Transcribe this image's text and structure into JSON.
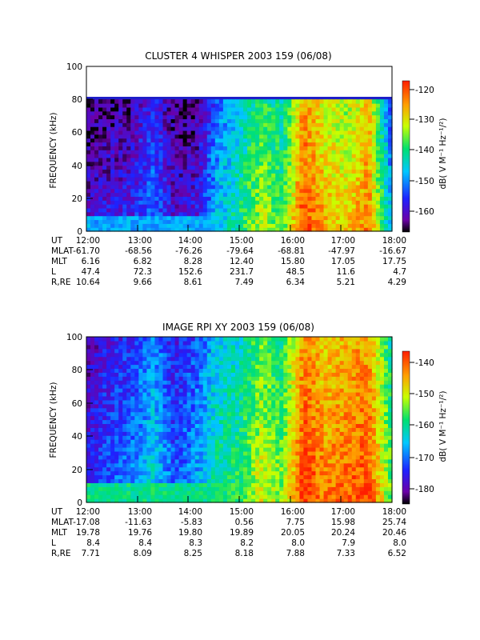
{
  "panels": [
    {
      "title": "CLUSTER 4 WHISPER 2003 159 (06/08)",
      "ylabel": "FREQUENCY (kHz)",
      "yticks": [
        "0",
        "20",
        "40",
        "60",
        "80",
        "100"
      ],
      "xticks": [
        "12:00",
        "13:00",
        "14:00",
        "15:00",
        "16:00",
        "17:00",
        "18:00"
      ],
      "colorbar": {
        "label": "dB( V M⁻¹ Hz⁻¹/²)",
        "ticks": [
          "-120",
          "-130",
          "-140",
          "-150",
          "-160"
        ]
      },
      "ephemeris": [
        {
          "label": "UT",
          "values": [
            "12:00",
            "13:00",
            "14:00",
            "15:00",
            "16:00",
            "17:00",
            "18:00"
          ]
        },
        {
          "label": "MLAT",
          "values": [
            "-61.70",
            "-68.56",
            "-76.26",
            "-79.64",
            "-68.81",
            "-47.97",
            "-16.67"
          ]
        },
        {
          "label": "MLT",
          "values": [
            "6.16",
            "6.82",
            "8.28",
            "12.40",
            "15.80",
            "17.05",
            "17.75"
          ]
        },
        {
          "label": "L",
          "values": [
            "47.4",
            "72.3",
            "152.6",
            "231.7",
            "48.5",
            "11.6",
            "4.7"
          ]
        },
        {
          "label": "R,RE",
          "values": [
            "10.64",
            "9.66",
            "8.61",
            "7.49",
            "6.34",
            "5.21",
            "4.29"
          ]
        }
      ]
    },
    {
      "title": "IMAGE RPI XY 2003 159 (06/08)",
      "ylabel": "FREQUENCY (kHz)",
      "yticks": [
        "0",
        "20",
        "40",
        "60",
        "80",
        "100"
      ],
      "xticks": [
        "12:00",
        "13:00",
        "14:00",
        "15:00",
        "16:00",
        "17:00",
        "18:00"
      ],
      "colorbar": {
        "label": "dB( V M⁻¹ Hz⁻¹/²)",
        "ticks": [
          "-140",
          "-150",
          "-160",
          "-170",
          "-180"
        ]
      },
      "ephemeris": [
        {
          "label": "UT",
          "values": [
            "12:00",
            "13:00",
            "14:00",
            "15:00",
            "16:00",
            "17:00",
            "18:00"
          ]
        },
        {
          "label": "MLAT",
          "values": [
            "-17.08",
            "-11.63",
            "-5.83",
            "0.56",
            "7.75",
            "15.98",
            "25.74"
          ]
        },
        {
          "label": "MLT",
          "values": [
            "19.78",
            "19.76",
            "19.80",
            "19.89",
            "20.05",
            "20.24",
            "20.46"
          ]
        },
        {
          "label": "L",
          "values": [
            "8.4",
            "8.4",
            "8.3",
            "8.2",
            "8.0",
            "7.9",
            "8.0"
          ]
        },
        {
          "label": "R,RE",
          "values": [
            "7.71",
            "8.09",
            "8.25",
            "8.18",
            "7.88",
            "7.33",
            "6.52"
          ]
        }
      ]
    }
  ],
  "chart_data": [
    {
      "type": "heatmap",
      "title": "CLUSTER 4 WHISPER 2003 159 (06/08)",
      "ylabel": "FREQUENCY (kHz)",
      "x": [
        "12:00",
        "13:00",
        "14:00",
        "15:00",
        "16:00",
        "17:00",
        "18:00"
      ],
      "xlim": [
        "12:00",
        "18:00"
      ],
      "ylim": [
        0,
        100
      ],
      "data_ylim": [
        0,
        80
      ],
      "zlabel": "dB( V M⁻¹ Hz⁻¹/²)",
      "zlim": [
        -166,
        -117
      ],
      "colormap": "rainbow",
      "intensity_profile_db": [
        -158,
        -157,
        -156,
        -150,
        -158,
        -157,
        -146,
        -140,
        -132,
        -137,
        -119,
        -126,
        -128,
        -122,
        -146
      ],
      "low_frequency_band_db": -148,
      "max_frequency_khz": 80
    },
    {
      "type": "heatmap",
      "title": "IMAGE RPI XY 2003 159 (06/08)",
      "ylabel": "FREQUENCY (kHz)",
      "x": [
        "12:00",
        "13:00",
        "14:00",
        "15:00",
        "16:00",
        "17:00",
        "18:00"
      ],
      "xlim": [
        "12:00",
        "18:00"
      ],
      "ylim": [
        0,
        100
      ],
      "data_ylim": [
        0,
        100
      ],
      "zlabel": "dB( V M⁻¹ Hz⁻¹/²)",
      "zlim": [
        -187,
        -136
      ],
      "colormap": "rainbow",
      "intensity_profile_db": [
        -176,
        -172,
        -170,
        -164,
        -172,
        -168,
        -160,
        -158,
        -150,
        -154,
        -137,
        -142,
        -140,
        -138,
        -155
      ],
      "low_frequency_band_db": -160,
      "max_frequency_khz": 100
    }
  ]
}
